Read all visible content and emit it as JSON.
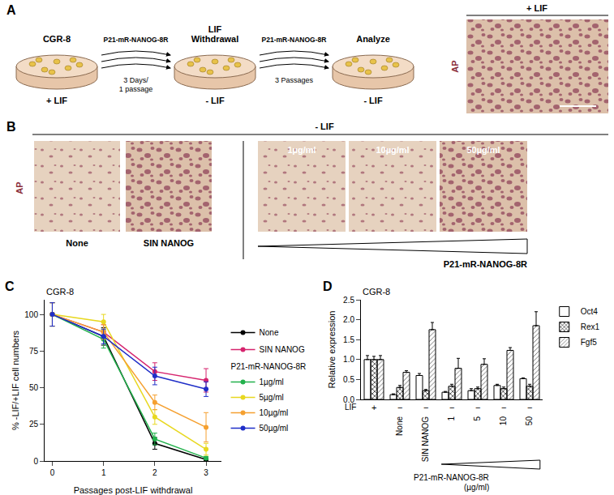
{
  "panels": {
    "A": {
      "letter": "A",
      "steps": [
        {
          "title": [
            "CGR-8"
          ],
          "condition": "+ LIF"
        },
        {
          "title": [
            "LIF",
            "Withdrawal"
          ],
          "condition": "- LIF"
        },
        {
          "title": [
            "Analyze"
          ],
          "condition": "- LIF"
        }
      ],
      "arrows": [
        {
          "reagent": "P21-mR-NANOG-8R",
          "note": [
            "3 Days/",
            "1 passage"
          ]
        },
        {
          "reagent": "P21-mR-NANOG-8R",
          "note": [
            "3 Passages"
          ]
        }
      ],
      "image": {
        "header": "+ LIF",
        "stain": "AP"
      }
    },
    "B": {
      "letter": "B",
      "header": "- LIF",
      "stain": "AP",
      "controls": [
        "None",
        "SIN NANOG"
      ],
      "doses": [
        "1µg/ml",
        "10µg/ml",
        "50µg/ml"
      ],
      "dose_group": "P21-mR-NANOG-8R"
    }
  },
  "chart_data": [
    {
      "panel": "C",
      "type": "line",
      "title": "CGR-8",
      "x": [
        0,
        1,
        2,
        3
      ],
      "xlim": [
        -0.15,
        3.3
      ],
      "xticks": [
        0,
        1,
        2,
        3
      ],
      "ylim": [
        0,
        110
      ],
      "yticks": [
        0,
        25,
        50,
        75,
        100
      ],
      "x_label": "Passages post-LIF withdrawal",
      "y_label": "% -LIF/+LIF cell numbers",
      "marker": "circle",
      "legend": "right",
      "grid": false,
      "series": [
        {
          "name": "None",
          "color": "#000000",
          "values": [
            100,
            85,
            12,
            1
          ],
          "errors": [
            8,
            6,
            4,
            1
          ]
        },
        {
          "name": "SIN NANOG",
          "color": "#d6246e",
          "values": [
            100,
            88,
            61,
            55
          ],
          "errors": [
            8,
            5,
            6,
            8
          ]
        },
        {
          "name": "1µg/ml",
          "group": "P21-mR-NANOG-8R",
          "color": "#22b14c",
          "values": [
            100,
            83,
            15,
            2
          ],
          "errors": [
            8,
            6,
            4,
            1
          ]
        },
        {
          "name": "5µg/ml",
          "group": "P21-mR-NANOG-8R",
          "color": "#e8d820",
          "values": [
            100,
            95,
            30,
            8
          ],
          "errors": [
            8,
            5,
            5,
            4
          ]
        },
        {
          "name": "10µg/ml",
          "group": "P21-mR-NANOG-8R",
          "color": "#f5a030",
          "values": [
            100,
            88,
            40,
            23
          ],
          "errors": [
            8,
            5,
            5,
            10
          ]
        },
        {
          "name": "50µg/ml",
          "group": "P21-mR-NANOG-8R",
          "color": "#1f2ec8",
          "values": [
            100,
            85,
            58,
            49
          ],
          "errors": [
            8,
            5,
            6,
            5
          ]
        }
      ]
    },
    {
      "panel": "D",
      "type": "bar",
      "title": "CGR-8",
      "categories": [
        null,
        "None",
        "SIN NANOG",
        "1",
        "5",
        "10",
        "50"
      ],
      "ylim": [
        0,
        2.5
      ],
      "yticks": [
        {
          "value": 0,
          "label": "0.0"
        },
        {
          "value": 0.5,
          "label": "0.5"
        },
        {
          "value": 1,
          "label": "1.0"
        },
        {
          "value": 1.5,
          "label": "1.5"
        },
        {
          "value": 2,
          "label": "2.0"
        },
        {
          "value": 2.5,
          "label": "2.5"
        }
      ],
      "y_label": "Relative expression",
      "legend": "top right",
      "grid": false,
      "lif": {
        "label": "LIF",
        "marks": [
          "+",
          "−",
          "−",
          "−",
          "−",
          "−",
          "−"
        ]
      },
      "dose_group": "P21-mR-NANOG-8R",
      "dose_unit": "(µg/ml)",
      "series": [
        {
          "name": "Oct4",
          "color": "#ffffff",
          "marker": "plain",
          "values": [
            1.0,
            0.12,
            0.6,
            0.18,
            0.22,
            0.35,
            0.52
          ],
          "errors": [
            0.1,
            0.02,
            0.05,
            0.02,
            0.05,
            0.03,
            0.02
          ]
        },
        {
          "name": "Rex1",
          "color": "#ffffff",
          "marker": "crosshatch",
          "values": [
            1.0,
            0.3,
            0.22,
            0.33,
            0.27,
            0.27,
            0.33
          ],
          "errors": [
            0.08,
            0.05,
            0.03,
            0.05,
            0.04,
            0.04,
            0.05
          ]
        },
        {
          "name": "Fgf5",
          "color": "#d9d9d9",
          "marker": "hatch",
          "values": [
            1.0,
            0.68,
            1.75,
            0.78,
            0.88,
            1.23,
            1.85
          ],
          "errors": [
            0.1,
            0.04,
            0.18,
            0.25,
            0.14,
            0.07,
            0.35
          ]
        }
      ]
    }
  ]
}
